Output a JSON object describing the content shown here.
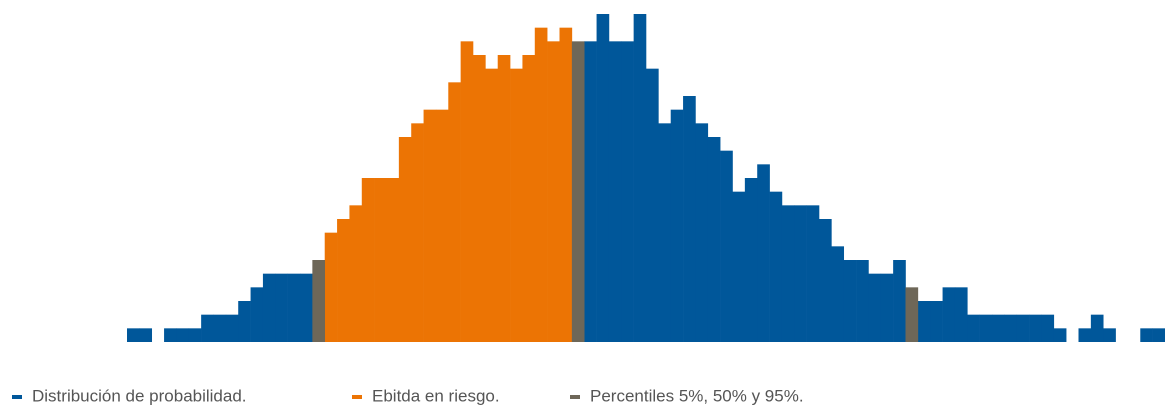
{
  "chart_data": {
    "type": "bar",
    "ylim": [
      0,
      24
    ],
    "legend": "bottom-left",
    "series": [
      {
        "name": "Distribución de probabilidad.",
        "color": "#00579a",
        "values": [
          1,
          1,
          0,
          1,
          1,
          1,
          2,
          2,
          2,
          3,
          4,
          5,
          5,
          5,
          5,
          null,
          null,
          null,
          null,
          null,
          null,
          null,
          null,
          null,
          null,
          null,
          null,
          null,
          null,
          null,
          null,
          null,
          null,
          null,
          null,
          null,
          null,
          22,
          24,
          22,
          22,
          24,
          20,
          16,
          17,
          18,
          16,
          15,
          14,
          11,
          12,
          13,
          11,
          10,
          10,
          10,
          9,
          7,
          6,
          6,
          5,
          5,
          6,
          null,
          3,
          3,
          4,
          4,
          2,
          2,
          2,
          2,
          2,
          2,
          2,
          1,
          0,
          1,
          2,
          1,
          0,
          0,
          1,
          1
        ]
      },
      {
        "name": "Ebitda en riesgo.",
        "color": "#ec7404",
        "values": [
          null,
          null,
          null,
          null,
          null,
          null,
          null,
          null,
          null,
          null,
          null,
          null,
          null,
          null,
          null,
          null,
          8,
          9,
          10,
          12,
          12,
          12,
          15,
          16,
          17,
          17,
          19,
          22,
          21,
          20,
          21,
          20,
          21,
          23,
          22,
          23,
          null,
          null,
          null,
          null,
          null,
          null,
          null,
          null,
          null,
          null,
          null,
          null,
          null,
          null,
          null,
          null,
          null,
          null,
          null,
          null,
          null,
          null,
          null,
          null,
          null,
          null,
          null,
          null,
          null,
          null,
          null,
          null,
          null,
          null,
          null,
          null,
          null,
          null,
          null,
          null,
          null,
          null,
          null,
          null,
          null,
          null,
          null,
          null
        ]
      },
      {
        "name": "Percentiles 5%, 50% y 95%.",
        "color": "#6e6758",
        "values": [
          null,
          null,
          null,
          null,
          null,
          null,
          null,
          null,
          null,
          null,
          null,
          null,
          null,
          null,
          null,
          6,
          null,
          null,
          null,
          null,
          null,
          null,
          null,
          null,
          null,
          null,
          null,
          null,
          null,
          null,
          null,
          null,
          null,
          null,
          null,
          null,
          22,
          null,
          null,
          null,
          null,
          null,
          null,
          null,
          null,
          null,
          null,
          null,
          null,
          null,
          null,
          null,
          null,
          null,
          null,
          null,
          null,
          null,
          null,
          null,
          null,
          null,
          null,
          4,
          null,
          null,
          null,
          null,
          null,
          null,
          null,
          null,
          null,
          null,
          null,
          null,
          null,
          null,
          null,
          null,
          null,
          null,
          null,
          null
        ]
      }
    ]
  }
}
